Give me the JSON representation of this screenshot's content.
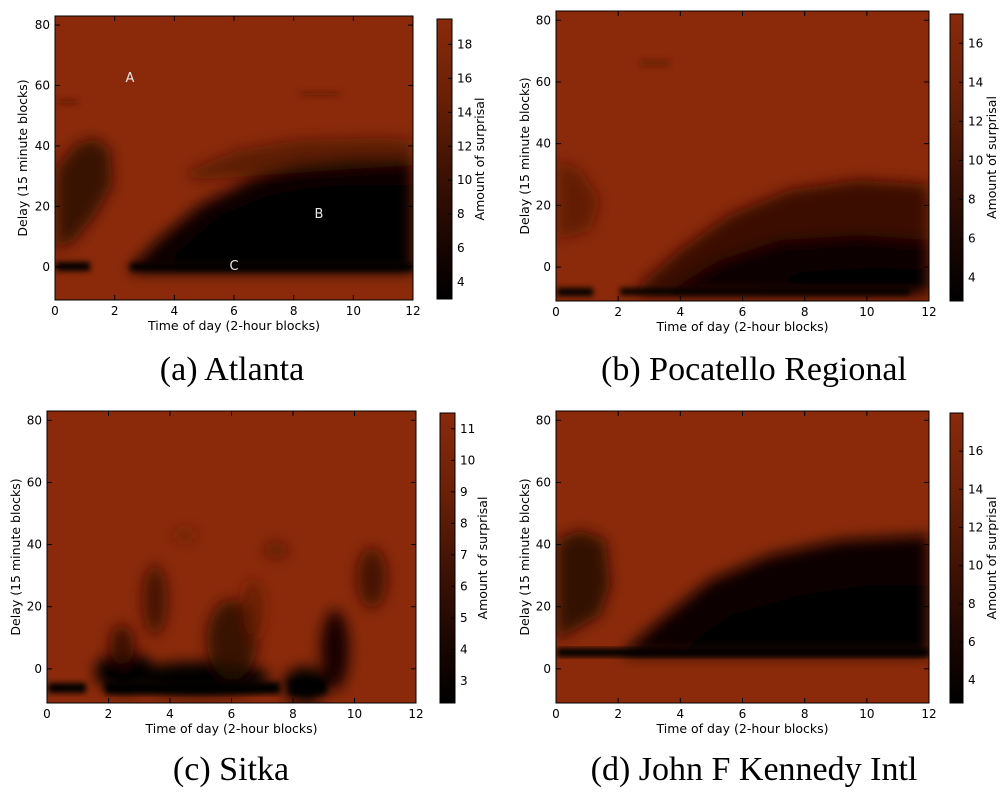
{
  "colors": {
    "background": "#8a2a0a",
    "colormap": [
      "#000000",
      "#140401",
      "#3a0f03",
      "#5e1b05",
      "#7a2408",
      "#8a2a0a"
    ]
  },
  "chart_data": [
    {
      "type": "heatmap",
      "caption": "(a) Atlanta",
      "xlabel": "Time of day (2-hour blocks)",
      "ylabel": "Delay (15 minute blocks)",
      "colorbar_label": "Amount of surprisal",
      "xlim": [
        0,
        12
      ],
      "ylim": [
        -11,
        83
      ],
      "xticks": [
        "0",
        "2",
        "4",
        "6",
        "8",
        "10",
        "12"
      ],
      "yticks": [
        "0",
        "20",
        "40",
        "60",
        "80"
      ],
      "clim": [
        3,
        19.5
      ],
      "cticks": [
        "4",
        "6",
        "8",
        "10",
        "12",
        "14",
        "16",
        "18"
      ],
      "annotations": [
        {
          "text": "A",
          "x": 2.5,
          "y": 62
        },
        {
          "text": "B",
          "x": 8.8,
          "y": 17
        },
        {
          "text": "C",
          "x": 5.9,
          "y": 0
        }
      ]
    },
    {
      "type": "heatmap",
      "caption": "(b) Pocatello Regional",
      "xlabel": "Time of day (2-hour blocks)",
      "ylabel": "Delay (15 minute blocks)",
      "colorbar_label": "Amount of surprisal",
      "xlim": [
        0,
        12
      ],
      "ylim": [
        -11,
        83
      ],
      "xticks": [
        "0",
        "2",
        "4",
        "6",
        "8",
        "10",
        "12"
      ],
      "yticks": [
        "0",
        "20",
        "40",
        "60",
        "80"
      ],
      "clim": [
        2.8,
        17.5
      ],
      "cticks": [
        "4",
        "6",
        "8",
        "10",
        "12",
        "14",
        "16"
      ]
    },
    {
      "type": "heatmap",
      "caption": "(c) Sitka",
      "xlabel": "Time of day (2-hour blocks)",
      "ylabel": "Delay (15 minute blocks)",
      "colorbar_label": "Amount of surprisal",
      "xlim": [
        0,
        12
      ],
      "ylim": [
        -11,
        83
      ],
      "xticks": [
        "0",
        "2",
        "4",
        "6",
        "8",
        "10",
        "12"
      ],
      "yticks": [
        "0",
        "20",
        "40",
        "60",
        "80"
      ],
      "clim": [
        2.3,
        11.5
      ],
      "cticks": [
        "3",
        "4",
        "5",
        "6",
        "7",
        "8",
        "9",
        "10",
        "11"
      ]
    },
    {
      "type": "heatmap",
      "caption": "(d) John F Kennedy Intl",
      "xlabel": "Time of day (2-hour blocks)",
      "ylabel": "Delay (15 minute blocks)",
      "colorbar_label": "Amount of surprisal",
      "xlim": [
        0,
        12
      ],
      "ylim": [
        -11,
        83
      ],
      "xticks": [
        "0",
        "2",
        "4",
        "6",
        "8",
        "10",
        "12"
      ],
      "yticks": [
        "0",
        "20",
        "40",
        "60",
        "80"
      ],
      "clim": [
        2.8,
        18
      ],
      "cticks": [
        "4",
        "6",
        "8",
        "10",
        "12",
        "14",
        "16"
      ]
    }
  ]
}
